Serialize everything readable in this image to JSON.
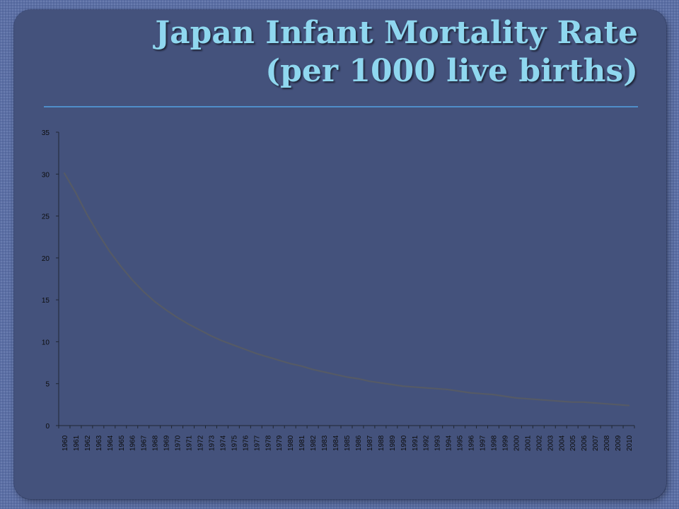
{
  "slide": {
    "title_line1": "Japan Infant Mortality Rate",
    "title_line2": "(per 1000 live births)"
  },
  "colors": {
    "line": "#555a66",
    "axis": "#1f2633",
    "tick_text": "#0d0d0d"
  },
  "chart_data": {
    "type": "line",
    "title": "",
    "xlabel": "",
    "ylabel": "",
    "ylim": [
      0,
      35
    ],
    "yticks": [
      0,
      5,
      10,
      15,
      20,
      25,
      30,
      35
    ],
    "grid": false,
    "legend": "none",
    "x": [
      "1960",
      "1961",
      "1962",
      "1963",
      "1964",
      "1965",
      "1966",
      "1967",
      "1968",
      "1969",
      "1970",
      "1971",
      "1972",
      "1973",
      "1974",
      "1975",
      "1976",
      "1977",
      "1978",
      "1979",
      "1980",
      "1981",
      "1982",
      "1983",
      "1984",
      "1985",
      "1986",
      "1987",
      "1988",
      "1989",
      "1990",
      "1991",
      "1992",
      "1993",
      "1994",
      "1995",
      "1996",
      "1997",
      "1998",
      "1999",
      "2000",
      "2001",
      "2002",
      "2003",
      "2004",
      "2005",
      "2006",
      "2007",
      "2008",
      "2009",
      "2010"
    ],
    "series": [
      {
        "values": [
          30.1,
          27.8,
          25.2,
          22.9,
          20.8,
          19.0,
          17.4,
          16.0,
          14.8,
          13.8,
          12.9,
          12.1,
          11.4,
          10.7,
          10.1,
          9.6,
          9.1,
          8.6,
          8.2,
          7.8,
          7.4,
          7.1,
          6.7,
          6.4,
          6.1,
          5.8,
          5.6,
          5.3,
          5.1,
          4.9,
          4.7,
          4.6,
          4.5,
          4.4,
          4.3,
          4.1,
          3.9,
          3.8,
          3.7,
          3.5,
          3.3,
          3.2,
          3.1,
          3.0,
          2.9,
          2.8,
          2.8,
          2.7,
          2.6,
          2.5,
          2.4
        ]
      }
    ]
  }
}
